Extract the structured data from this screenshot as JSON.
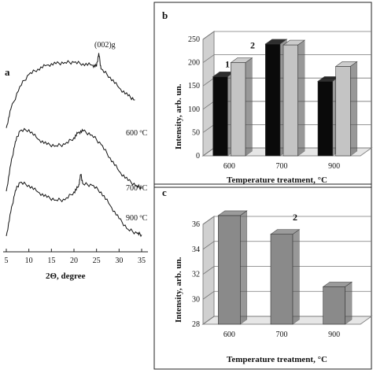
{
  "chart_data": [
    {
      "panel": "a",
      "type": "line",
      "xlabel": "2Θ, degree",
      "xlim": [
        5,
        35
      ],
      "xticks": [
        5,
        10,
        15,
        20,
        25,
        30,
        35
      ],
      "peak_label": "(002)g",
      "series": [
        {
          "name": "600 ºC",
          "x": [
            5,
            6,
            8,
            10,
            12,
            14,
            16,
            18,
            20,
            22,
            24,
            25,
            25.5,
            26,
            28,
            30,
            32,
            33.5
          ],
          "y": [
            0.22,
            0.36,
            0.53,
            0.62,
            0.66,
            0.69,
            0.7,
            0.71,
            0.71,
            0.7,
            0.69,
            0.68,
            0.78,
            0.66,
            0.6,
            0.52,
            0.46,
            0.43
          ]
        },
        {
          "name": "700 ºC",
          "x": [
            5,
            6,
            7,
            8,
            10,
            12,
            14,
            16,
            18,
            20,
            21,
            22,
            24,
            26,
            28,
            30,
            32,
            34,
            35
          ],
          "y": [
            0.1,
            0.3,
            0.47,
            0.55,
            0.56,
            0.49,
            0.45,
            0.44,
            0.45,
            0.5,
            0.54,
            0.55,
            0.52,
            0.45,
            0.35,
            0.25,
            0.18,
            0.14,
            0.12
          ]
        },
        {
          "name": "900 ºC",
          "x": [
            5,
            6,
            7,
            8,
            10,
            12,
            14,
            16,
            18,
            20,
            21,
            21.5,
            22,
            24,
            26,
            28,
            30,
            32,
            34,
            35
          ],
          "y": [
            0.0,
            0.18,
            0.34,
            0.4,
            0.38,
            0.33,
            0.29,
            0.27,
            0.27,
            0.33,
            0.37,
            0.46,
            0.39,
            0.38,
            0.33,
            0.23,
            0.13,
            0.05,
            0.02,
            0.01
          ]
        }
      ]
    },
    {
      "panel": "b",
      "type": "bar",
      "categories": [
        "600",
        "700",
        "900"
      ],
      "xlabel": "Temperature treatment, °C",
      "ylabel": "Intensity, arb. un.",
      "ylim": [
        0,
        250
      ],
      "yticks": [
        0,
        50,
        100,
        150,
        200,
        250
      ],
      "series": [
        {
          "name": "1",
          "color": "#0a0a0a",
          "values": [
            170,
            240,
            160
          ]
        },
        {
          "name": "2",
          "color": "#c4c4c4",
          "values": [
            200,
            238,
            192
          ]
        }
      ],
      "grid": true
    },
    {
      "panel": "c",
      "type": "bar",
      "categories": [
        "600",
        "700",
        "900"
      ],
      "xlabel": "Temperature treatment, °C",
      "ylabel": "Intensity, arb. un.",
      "ylim": [
        28,
        36
      ],
      "yticks": [
        28,
        30,
        32,
        34,
        36
      ],
      "series": [
        {
          "name": "2",
          "color": "#8a8a8a",
          "values": [
            36.7,
            35.2,
            31.0
          ]
        }
      ],
      "grid": true
    }
  ],
  "colors": {
    "black_bar": "#0a0a0a",
    "light_bar": "#c4c4c4",
    "gray_bar": "#8a8a8a",
    "frame": "#222222"
  }
}
